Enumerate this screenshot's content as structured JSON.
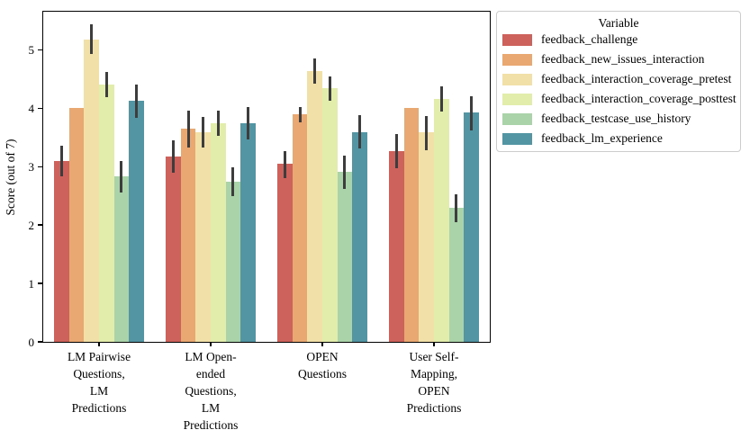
{
  "figure": {
    "background_color": "#ffffff",
    "axis_color": "#000000",
    "error_bar_color": "#3d3d3d"
  },
  "legend": {
    "title": "Variable",
    "border_color": "#cccccc"
  },
  "chart_data": {
    "type": "bar",
    "title": "",
    "xlabel": "",
    "ylabel": "Score (out of 7)",
    "ylim": [
      0,
      5.65
    ],
    "yticks": [
      0,
      1,
      2,
      3,
      4,
      5
    ],
    "grid": false,
    "legend_position": "outside-upper-right",
    "error_bars": "vertical lines, no caps",
    "categories": [
      "LM Pairwise Questions, LM Predictions",
      "LM Open-ended Questions, LM Predictions",
      "OPEN Questions",
      "User Self-Mapping, OPEN Predictions"
    ],
    "category_label_lines": [
      [
        "LM Pairwise",
        "Questions,",
        "LM",
        "Predictions"
      ],
      [
        "LM Open-",
        "ended",
        "Questions,",
        "LM",
        "Predictions"
      ],
      [
        "OPEN",
        "Questions"
      ],
      [
        "User Self-",
        "Mapping,",
        "OPEN",
        "Predictions"
      ]
    ],
    "series": [
      {
        "name": "feedback_challenge",
        "color": "#cd625d",
        "values": [
          3.09,
          3.17,
          3.05,
          3.26
        ],
        "err_low": [
          2.83,
          2.9,
          2.8,
          2.97
        ],
        "err_high": [
          3.35,
          3.45,
          3.27,
          3.55
        ]
      },
      {
        "name": "feedback_new_issues_interaction",
        "color": "#e9a871",
        "values": [
          4.0,
          3.65,
          3.89,
          4.0
        ],
        "err_low": [
          null,
          3.33,
          3.76,
          null
        ],
        "err_high": [
          null,
          3.95,
          4.02,
          null
        ]
      },
      {
        "name": "feedback_interaction_coverage_pretest",
        "color": "#f2e0a9",
        "values": [
          5.17,
          3.59,
          4.64,
          3.58
        ],
        "err_low": [
          4.92,
          3.33,
          4.42,
          3.28
        ],
        "err_high": [
          5.43,
          3.85,
          4.85,
          3.87
        ]
      },
      {
        "name": "feedback_interaction_coverage_posttest",
        "color": "#e3edab",
        "values": [
          4.41,
          3.74,
          4.34,
          4.15
        ],
        "err_low": [
          4.19,
          3.52,
          4.13,
          3.94
        ],
        "err_high": [
          4.62,
          3.96,
          4.54,
          4.37
        ]
      },
      {
        "name": "feedback_testcase_use_history",
        "color": "#abd3a9",
        "values": [
          2.84,
          2.74,
          2.91,
          2.29
        ],
        "err_low": [
          2.56,
          2.5,
          2.62,
          2.04
        ],
        "err_high": [
          3.09,
          2.98,
          3.18,
          2.53
        ]
      },
      {
        "name": "feedback_lm_experience",
        "color": "#5495a4",
        "values": [
          4.12,
          3.74,
          3.59,
          3.93
        ],
        "err_low": [
          3.83,
          3.46,
          3.31,
          3.62
        ],
        "err_high": [
          4.4,
          4.02,
          3.88,
          4.21
        ]
      }
    ]
  }
}
